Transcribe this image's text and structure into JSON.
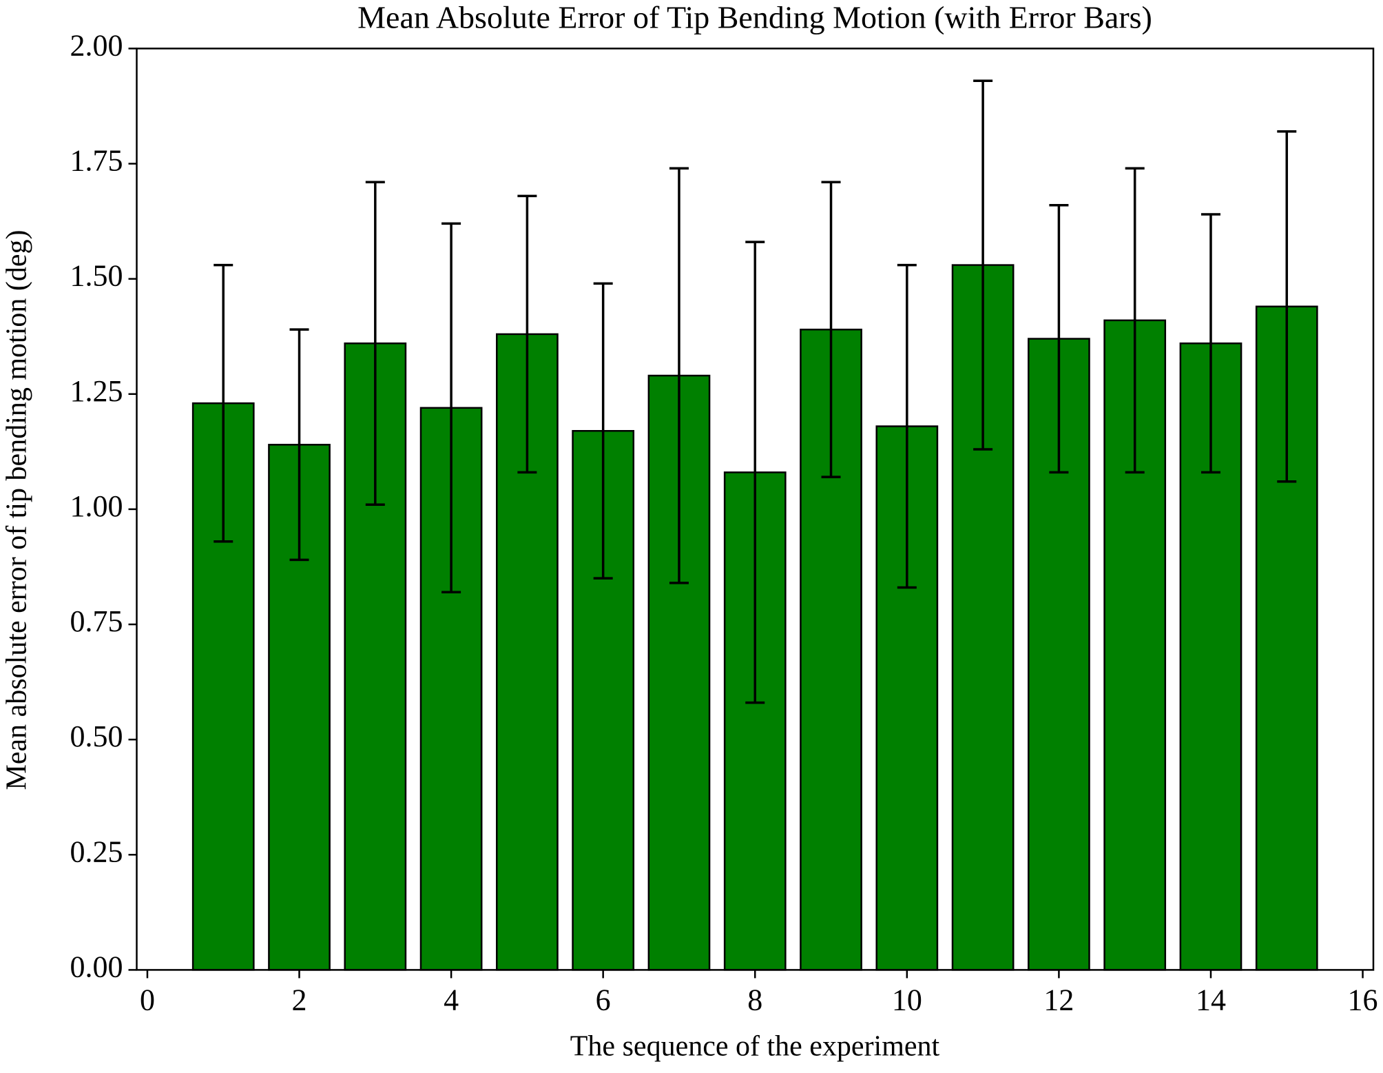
{
  "chart_data": {
    "type": "bar",
    "title": "Mean Absolute Error of Tip Bending Motion (with Error Bars)",
    "x_label": "The sequence of the experiment",
    "y_label": "Mean absolute error of tip bending motion (deg)",
    "x": [
      1,
      2,
      3,
      4,
      5,
      6,
      7,
      8,
      9,
      10,
      11,
      12,
      13,
      14,
      15
    ],
    "values": [
      1.23,
      1.14,
      1.36,
      1.22,
      1.38,
      1.17,
      1.29,
      1.08,
      1.39,
      1.18,
      1.53,
      1.37,
      1.41,
      1.36,
      1.44
    ],
    "errors": [
      0.3,
      0.25,
      0.35,
      0.4,
      0.3,
      0.32,
      0.45,
      0.5,
      0.32,
      0.35,
      0.4,
      0.29,
      0.33,
      0.28,
      0.38
    ],
    "color": "green",
    "edgecolor": "black",
    "xlim": [
      -0.14,
      16.14
    ],
    "xticks": [
      0,
      2,
      4,
      6,
      8,
      10,
      12,
      14,
      16
    ],
    "ylim": [
      0,
      2
    ],
    "yticks": [
      {
        "value": 0,
        "label": "0.00"
      },
      0.25,
      {
        "value": 0.5,
        "label": "0.50"
      },
      0.75,
      {
        "value": 1,
        "label": "1.00"
      },
      1.25,
      {
        "value": 1.5,
        "label": "1.50"
      },
      1.75,
      {
        "value": 2,
        "label": "2.00"
      }
    ],
    "grid": false
  }
}
